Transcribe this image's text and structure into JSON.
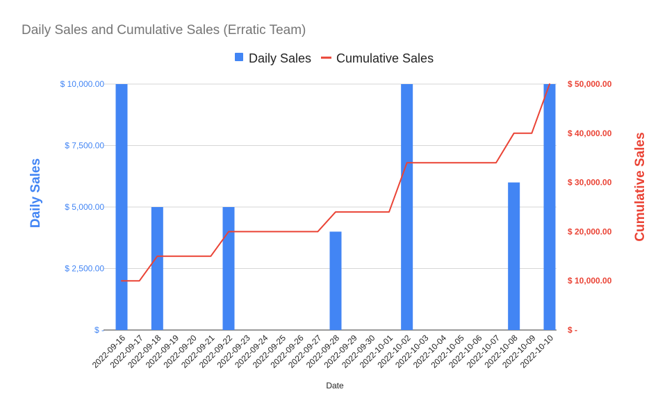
{
  "chart_data": {
    "type": "bar",
    "title": "Daily Sales and Cumulative Sales (Erratic Team)",
    "xlabel": "Date",
    "ylabel": "Daily Sales",
    "y2label": "Cumulative Sales",
    "legend_position": "top-center",
    "grid": true,
    "categories": [
      "2022-09-16",
      "2022-09-17",
      "2022-09-18",
      "2022-09-19",
      "2022-09-20",
      "2022-09-21",
      "2022-09-22",
      "2022-09-23",
      "2022-09-24",
      "2022-09-25",
      "2022-09-26",
      "2022-09-27",
      "2022-09-28",
      "2022-09-29",
      "2022-09-30",
      "2022-10-01",
      "2022-10-02",
      "2022-10-03",
      "2022-10-04",
      "2022-10-05",
      "2022-10-06",
      "2022-10-07",
      "2022-10-08",
      "2022-10-09",
      "2022-10-10"
    ],
    "series": [
      {
        "name": "Daily Sales",
        "type": "bar",
        "axis": "left",
        "color": "#4285F4",
        "values": [
          10000,
          0,
          5000,
          0,
          0,
          0,
          5000,
          0,
          0,
          0,
          0,
          0,
          4000,
          0,
          0,
          0,
          10000,
          0,
          0,
          0,
          0,
          0,
          6000,
          0,
          10000
        ]
      },
      {
        "name": "Cumulative Sales",
        "type": "line",
        "axis": "right",
        "color": "#EA4335",
        "values": [
          10000,
          10000,
          15000,
          15000,
          15000,
          15000,
          20000,
          20000,
          20000,
          20000,
          20000,
          20000,
          24000,
          24000,
          24000,
          24000,
          34000,
          34000,
          34000,
          34000,
          34000,
          34000,
          40000,
          40000,
          50000
        ]
      }
    ],
    "ylim": [
      0,
      10000
    ],
    "y2lim": [
      0,
      50000
    ],
    "y_ticks": [
      {
        "value": 0,
        "label": "$ -"
      },
      {
        "value": 2500,
        "label": "$ 2,500.00"
      },
      {
        "value": 5000,
        "label": "$ 5,000.00"
      },
      {
        "value": 7500,
        "label": "$ 7,500.00"
      },
      {
        "value": 10000,
        "label": "$ 10,000.00"
      }
    ],
    "y2_ticks": [
      {
        "value": 0,
        "label": "$ -"
      },
      {
        "value": 10000,
        "label": "$ 10,000.00"
      },
      {
        "value": 20000,
        "label": "$ 20,000.00"
      },
      {
        "value": 30000,
        "label": "$ 30,000.00"
      },
      {
        "value": 40000,
        "label": "$ 40,000.00"
      },
      {
        "value": 50000,
        "label": "$ 50,000.00"
      }
    ]
  }
}
